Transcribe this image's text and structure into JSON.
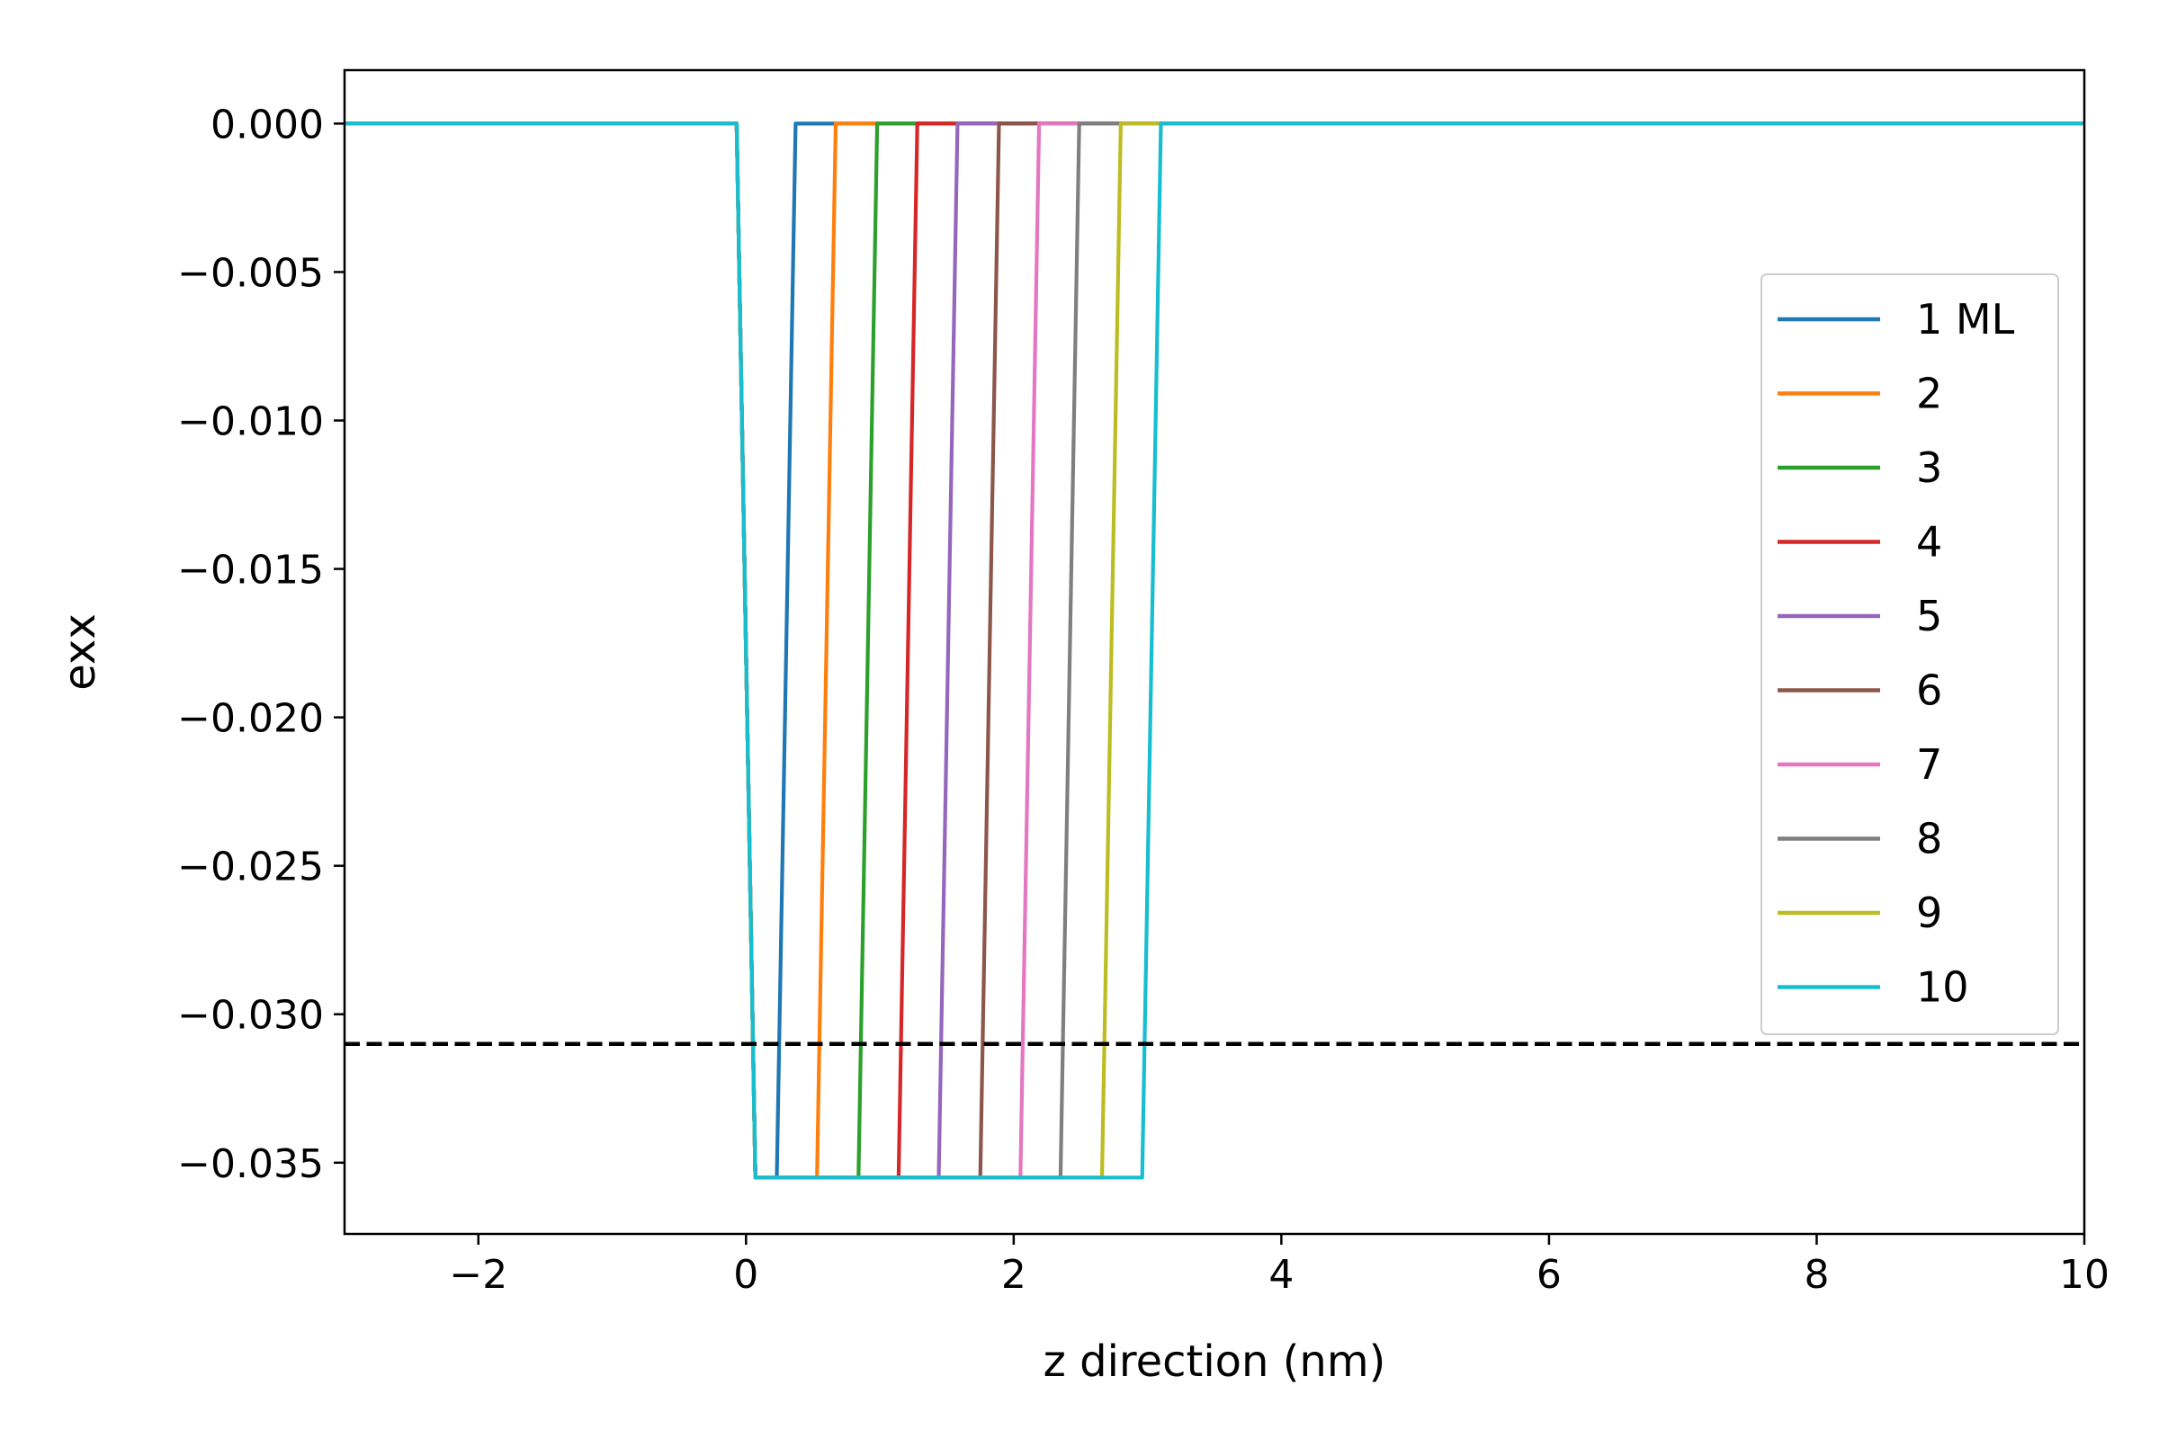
{
  "chart_data": {
    "type": "line",
    "title": "",
    "xlabel": "z direction (nm)",
    "ylabel": "exx",
    "xlim": [
      -3,
      10
    ],
    "ylim": [
      -0.0374,
      0.0018
    ],
    "xticks": [
      -2,
      0,
      2,
      4,
      6,
      8,
      10
    ],
    "xtick_labels": [
      "−2",
      "0",
      "2",
      "4",
      "6",
      "8",
      "10"
    ],
    "yticks": [
      0.0,
      -0.005,
      -0.01,
      -0.015,
      -0.02,
      -0.025,
      -0.03,
      -0.035
    ],
    "ytick_labels": [
      "0.000",
      "−0.005",
      "−0.010",
      "−0.015",
      "−0.020",
      "−0.025",
      "−0.030",
      "−0.035"
    ],
    "grid": false,
    "legend_position": "right",
    "reference_line": {
      "y": -0.031,
      "style": "dashed",
      "color": "#000000"
    },
    "series": [
      {
        "name": "1 ML",
        "color": "#1f77b4",
        "x": [
          -3,
          -0.07,
          0.07,
          0.23,
          0.37,
          10
        ],
        "y": [
          0,
          0,
          -0.0355,
          -0.0355,
          0,
          0
        ]
      },
      {
        "name": "2",
        "color": "#ff7f0e",
        "x": [
          -3,
          -0.07,
          0.07,
          0.53,
          0.67,
          10
        ],
        "y": [
          0,
          0,
          -0.0355,
          -0.0355,
          0,
          0
        ]
      },
      {
        "name": "3",
        "color": "#2ca02c",
        "x": [
          -3,
          -0.07,
          0.07,
          0.84,
          0.98,
          10
        ],
        "y": [
          0,
          0,
          -0.0355,
          -0.0355,
          0,
          0
        ]
      },
      {
        "name": "4",
        "color": "#d62728",
        "x": [
          -3,
          -0.07,
          0.07,
          1.14,
          1.28,
          10
        ],
        "y": [
          0,
          0,
          -0.0355,
          -0.0355,
          0,
          0
        ]
      },
      {
        "name": "5",
        "color": "#9467bd",
        "x": [
          -3,
          -0.07,
          0.07,
          1.44,
          1.58,
          10
        ],
        "y": [
          0,
          0,
          -0.0355,
          -0.0355,
          0,
          0
        ]
      },
      {
        "name": "6",
        "color": "#8c564b",
        "x": [
          -3,
          -0.07,
          0.07,
          1.75,
          1.89,
          10
        ],
        "y": [
          0,
          0,
          -0.0355,
          -0.0355,
          0,
          0
        ]
      },
      {
        "name": "7",
        "color": "#e377c2",
        "x": [
          -3,
          -0.07,
          0.07,
          2.05,
          2.19,
          10
        ],
        "y": [
          0,
          0,
          -0.0355,
          -0.0355,
          0,
          0
        ]
      },
      {
        "name": "8",
        "color": "#7f7f7f",
        "x": [
          -3,
          -0.07,
          0.07,
          2.35,
          2.49,
          10
        ],
        "y": [
          0,
          0,
          -0.0355,
          -0.0355,
          0,
          0
        ]
      },
      {
        "name": "9",
        "color": "#bcbd22",
        "x": [
          -3,
          -0.07,
          0.07,
          2.66,
          2.8,
          10
        ],
        "y": [
          0,
          0,
          -0.0355,
          -0.0355,
          0,
          0
        ]
      },
      {
        "name": "10",
        "color": "#17becf",
        "x": [
          -3,
          -0.07,
          0.07,
          2.96,
          3.1,
          10
        ],
        "y": [
          0,
          0,
          -0.0355,
          -0.0355,
          0,
          0
        ]
      }
    ]
  }
}
